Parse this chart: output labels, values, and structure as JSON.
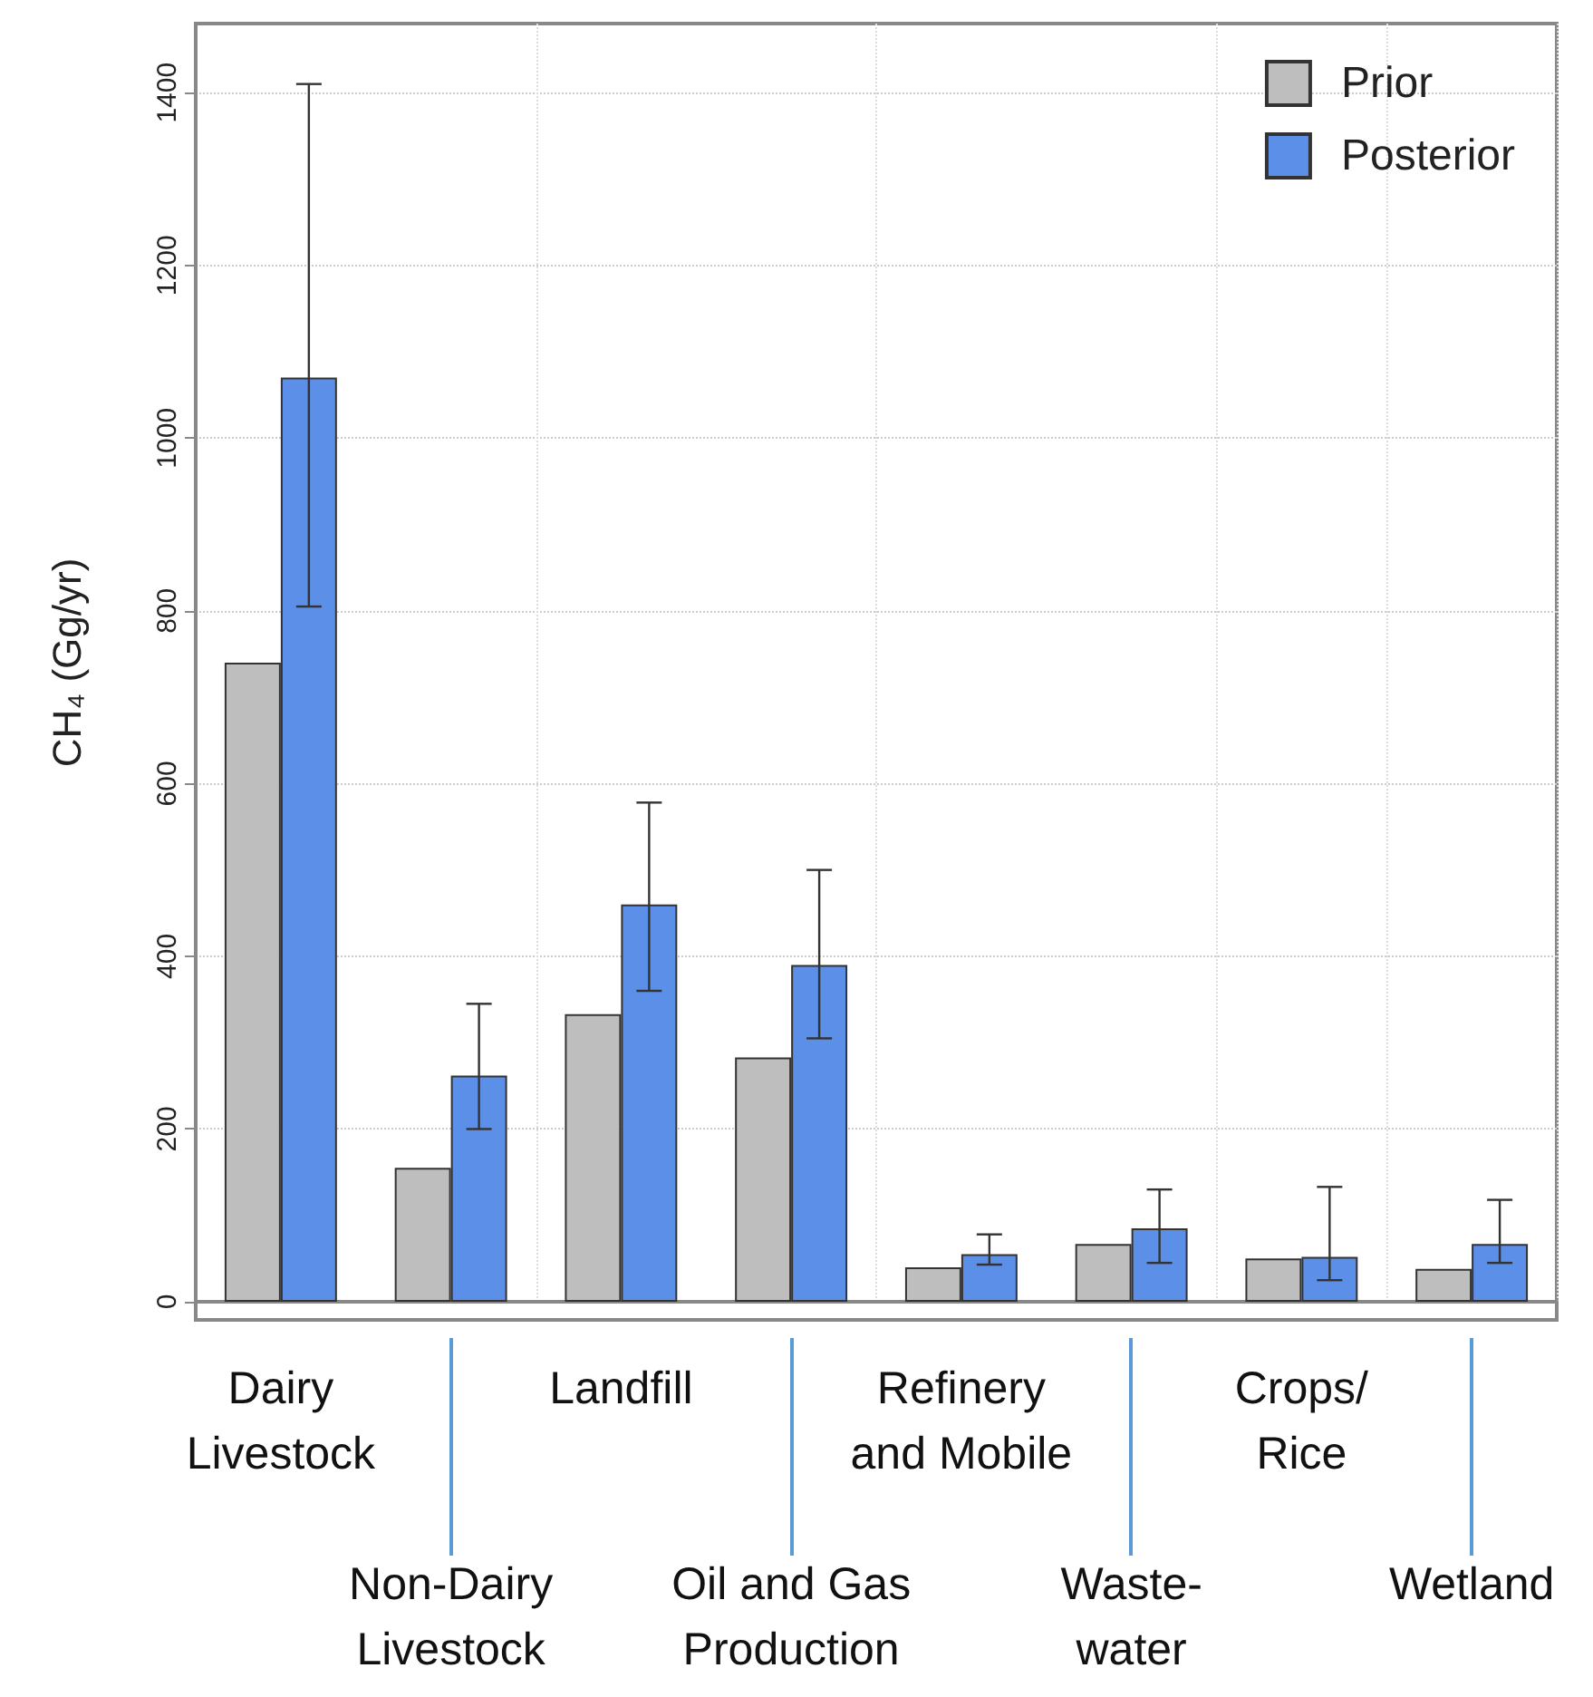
{
  "chart_data": {
    "type": "bar",
    "ylabel": "CH₄ (Gg/yr)",
    "categories": [
      "Dairy\nLivestock",
      "Non-Dairy\nLivestock",
      "Landfill",
      "Oil and Gas\nProduction",
      "Refinery\nand Mobile",
      "Waste-\nwater",
      "Crops/\nRice",
      "Wetland"
    ],
    "series": [
      {
        "name": "Prior",
        "color": "#bebebe",
        "values": [
          740,
          155,
          333,
          283,
          40,
          67,
          50,
          38
        ]
      },
      {
        "name": "Posterior",
        "color": "#5b8fe8",
        "values": [
          1070,
          262,
          460,
          390,
          55,
          85,
          52,
          67
        ],
        "errors": [
          [
            805,
            1410
          ],
          [
            200,
            345
          ],
          [
            360,
            578
          ],
          [
            305,
            500
          ],
          [
            43,
            78
          ],
          [
            45,
            130
          ],
          [
            25,
            133
          ],
          [
            45,
            118
          ]
        ]
      }
    ],
    "ylim": [
      0,
      1480
    ],
    "yticks": [
      0,
      200,
      400,
      600,
      800,
      1000,
      1200,
      1400
    ],
    "grid": true,
    "legend": "top right"
  }
}
